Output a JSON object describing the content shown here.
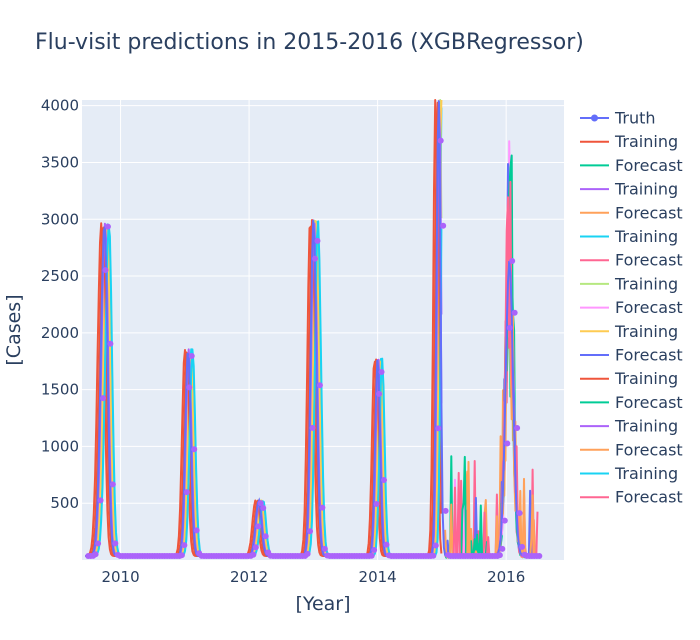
{
  "chart_data": {
    "type": "line",
    "title": "Flu-visit predictions in 2015-2016 (XGBRegressor)",
    "xlabel": "[Year]",
    "ylabel": "[Cases]",
    "xlim": [
      2009.4,
      2016.9
    ],
    "ylim": [
      0,
      4050
    ],
    "xticks": [
      2010,
      2012,
      2014,
      2016
    ],
    "yticks": [
      500,
      1000,
      1500,
      2000,
      2500,
      3000,
      3500,
      4000
    ],
    "grid": true,
    "legend_position": "right",
    "plot_background": "#e5ecf6",
    "series": [
      {
        "name": "Truth",
        "color": "#636efa",
        "kind": "truth",
        "markers": true
      },
      {
        "name": "Training",
        "color": "#ef553b",
        "kind": "training",
        "offset": 0.05
      },
      {
        "name": "Forecast",
        "color": "#00cc96",
        "kind": "forecast",
        "seed": 1
      },
      {
        "name": "Training",
        "color": "#ab63fa",
        "kind": "training",
        "offset": 0.0
      },
      {
        "name": "Forecast",
        "color": "#ffa15a",
        "kind": "forecast",
        "seed": 2
      },
      {
        "name": "Training",
        "color": "#19d3f3",
        "kind": "training",
        "offset": -0.05
      },
      {
        "name": "Forecast",
        "color": "#ff6692",
        "kind": "forecast",
        "seed": 3
      },
      {
        "name": "Training",
        "color": "#b6e880",
        "kind": "training",
        "offset": -0.02
      },
      {
        "name": "Forecast",
        "color": "#ff97ff",
        "kind": "forecast",
        "seed": 4
      },
      {
        "name": "Training",
        "color": "#fecb52",
        "kind": "training",
        "offset": -0.04
      },
      {
        "name": "Forecast",
        "color": "#636efa",
        "kind": "forecast",
        "seed": 5
      },
      {
        "name": "Training",
        "color": "#ef553b",
        "kind": "training",
        "offset": 0.02
      },
      {
        "name": "Forecast",
        "color": "#00cc96",
        "kind": "forecast",
        "seed": 6
      },
      {
        "name": "Training",
        "color": "#ab63fa",
        "kind": "training",
        "offset": -0.01
      },
      {
        "name": "Forecast",
        "color": "#ffa15a",
        "kind": "forecast",
        "seed": 7
      },
      {
        "name": "Training",
        "color": "#19d3f3",
        "kind": "training",
        "offset": -0.07
      },
      {
        "name": "Forecast",
        "color": "#ff6692",
        "kind": "forecast",
        "seed": 8
      }
    ],
    "truth_seasons": [
      {
        "peak_year": 2009.75,
        "peak": 2930,
        "rise": 0.12,
        "fall": 0.1
      },
      {
        "peak_year": 2011.05,
        "peak": 1820,
        "rise": 0.09,
        "fall": 0.09
      },
      {
        "peak_year": 2012.15,
        "peak": 490,
        "rise": 0.1,
        "fall": 0.09
      },
      {
        "peak_year": 2013.0,
        "peak": 2960,
        "rise": 0.09,
        "fall": 0.1
      },
      {
        "peak_year": 2014.0,
        "peak": 1740,
        "rise": 0.08,
        "fall": 0.08
      },
      {
        "peak_year": 2014.95,
        "peak": 4050,
        "rise": 0.07,
        "fall": 0.06
      },
      {
        "peak_year": 2016.05,
        "peak": 2600,
        "rise": 0.12,
        "fall": 0.12
      }
    ],
    "truth_range": [
      2009.45,
      2016.5
    ],
    "baseline": 35,
    "forecast_range": [
      2015.05,
      2016.5
    ]
  }
}
